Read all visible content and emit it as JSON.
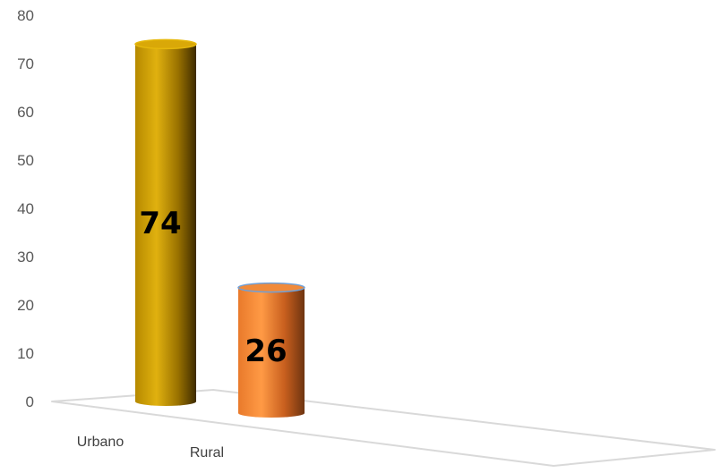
{
  "chart_data": {
    "type": "bar",
    "categories": [
      "Urbano",
      "Rural"
    ],
    "values": [
      74,
      26
    ],
    "data_labels": [
      "74",
      "26"
    ],
    "ylim": [
      0,
      80
    ],
    "yticks": [
      "0",
      "10",
      "20",
      "30",
      "40",
      "50",
      "60",
      "70",
      "80"
    ],
    "title": "",
    "xlabel": "",
    "ylabel": "",
    "grid": false,
    "legend": "none",
    "style": "3d-cylinder",
    "colors": [
      "#C99A06",
      "#ED7D31"
    ]
  }
}
